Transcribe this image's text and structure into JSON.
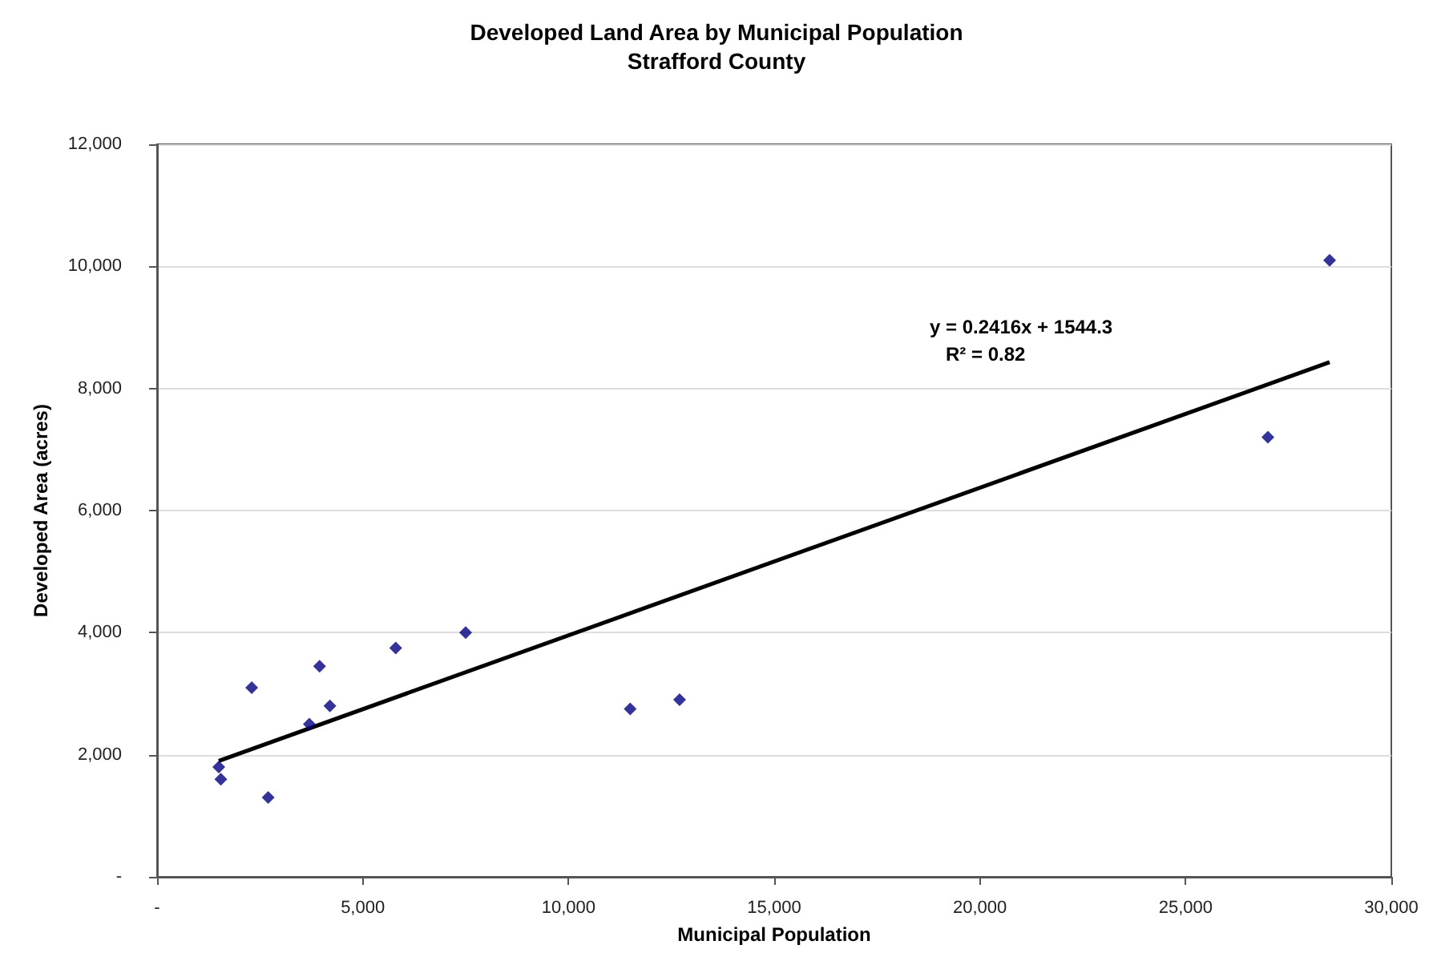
{
  "chart_data": {
    "type": "scatter",
    "title": "Developed Land Area by Municipal Population",
    "subtitle": "Strafford County",
    "xlabel": "Municipal Population",
    "ylabel": "Developed Area (acres)",
    "annotations": [
      "y = 0.2416x + 1544.3",
      "R² = 0.82"
    ],
    "series": [
      {
        "color": "#000080",
        "marker": "diamond",
        "x": [
          28500,
          27000,
          7500,
          5800,
          3950,
          2300,
          4200,
          3700,
          11500,
          12700,
          1500,
          1550,
          2700
        ],
        "values": [
          10100,
          7200,
          4000,
          3750,
          3450,
          3100,
          2800,
          2500,
          2750,
          2900,
          1800,
          1600,
          1300
        ]
      },
      {
        "type": "line",
        "color": "#000000",
        "marker": "none",
        "line_style": "solid",
        "x": [
          1500,
          28500
        ],
        "values": [
          1900,
          8430
        ]
      }
    ],
    "xlim": [
      0,
      30000
    ],
    "xticks": [
      {
        "value": 0,
        "label": "-"
      },
      {
        "value": 5000,
        "label": "5,000"
      },
      {
        "value": 10000,
        "label": "10,000"
      },
      {
        "value": 15000,
        "label": "15,000"
      },
      {
        "value": 20000,
        "label": "20,000"
      },
      {
        "value": 25000,
        "label": "25,000"
      },
      {
        "value": 30000,
        "label": "30,000"
      }
    ],
    "ylim": [
      0,
      12000
    ],
    "yticks": [
      {
        "value": 0,
        "label": "-"
      },
      {
        "value": 2000,
        "label": "2,000"
      },
      {
        "value": 4000,
        "label": "4,000"
      },
      {
        "value": 6000,
        "label": "6,000"
      },
      {
        "value": 8000,
        "label": "8,000"
      },
      {
        "value": 10000,
        "label": "10,000"
      },
      {
        "value": 12000,
        "label": "12,000"
      }
    ],
    "grid": "y"
  }
}
